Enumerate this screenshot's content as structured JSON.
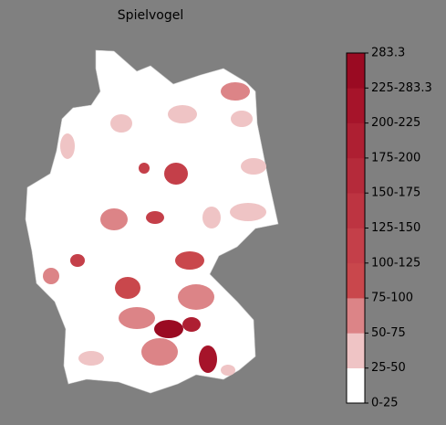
{
  "title": "Spielvogel",
  "colorbar": {
    "labels": [
      "0-25",
      "25-50",
      "50-75",
      "75-100",
      "100-125",
      "125-150",
      "150-175",
      "175-200",
      "200-225",
      "225-283.3",
      "283.3"
    ],
    "colors": [
      "#ffffff",
      "#efc4c5",
      "#dc8487",
      "#c9474c",
      "#c43f49",
      "#bd3441",
      "#b52a3a",
      "#ae1f32",
      "#a6142a",
      "#9a0a22"
    ]
  }
}
